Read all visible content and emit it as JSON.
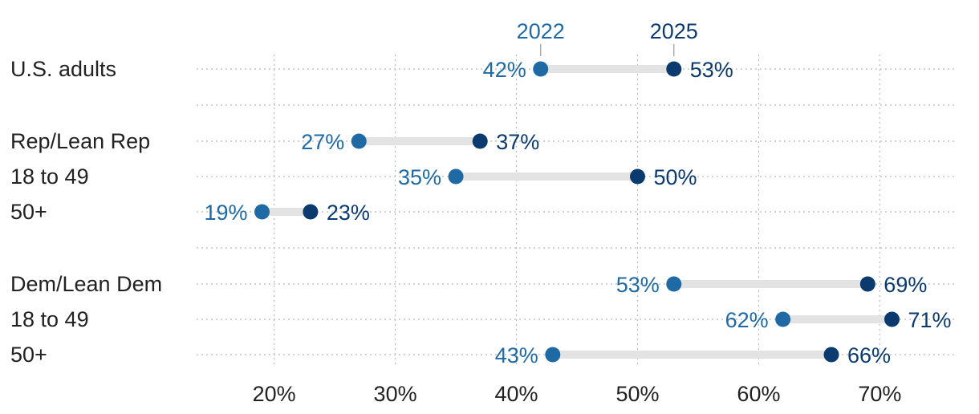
{
  "chart_data": {
    "type": "dot-range",
    "series": [
      {
        "name": "2022",
        "color": "#1f6aa5"
      },
      {
        "name": "2025",
        "color": "#0b3a6e"
      }
    ],
    "rows": [
      {
        "label": "U.S. adults",
        "start": 42,
        "end": 53,
        "start_label": "42%",
        "end_label": "53%"
      },
      {
        "label": "Rep/Lean Rep",
        "start": 27,
        "end": 37,
        "start_label": "27%",
        "end_label": "37%"
      },
      {
        "label": "18 to 49",
        "start": 35,
        "end": 50,
        "start_label": "35%",
        "end_label": "50%"
      },
      {
        "label": "50+",
        "start": 19,
        "end": 23,
        "start_label": "19%",
        "end_label": "23%"
      },
      {
        "label": "Dem/Lean Dem",
        "start": 53,
        "end": 69,
        "start_label": "53%",
        "end_label": "69%"
      },
      {
        "label": "18 to 49",
        "start": 62,
        "end": 71,
        "start_label": "62%",
        "end_label": "71%"
      },
      {
        "label": "50+",
        "start": 43,
        "end": 66,
        "start_label": "43%",
        "end_label": "66%"
      }
    ],
    "x_ticks": [
      20,
      30,
      40,
      50,
      60,
      70
    ],
    "x_tick_labels": [
      "20%",
      "30%",
      "40%",
      "50%",
      "60%",
      "70%"
    ],
    "xlim": [
      13.6,
      76.2
    ],
    "grid": true
  },
  "colors": {
    "series_2022": "#1f6aa5",
    "series_2025": "#0b3a6e",
    "connector": "#e3e3e3",
    "grid": "#bbbbbb",
    "text": "#222222"
  }
}
